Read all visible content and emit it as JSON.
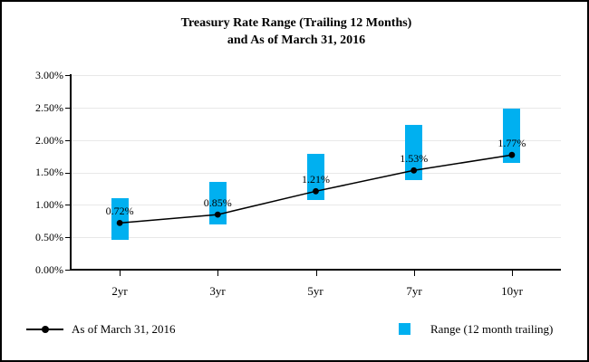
{
  "title": {
    "line1": "Treasury Rate Range (Trailing 12 Months)",
    "line2": "and As of March 31, 2016"
  },
  "legend": {
    "line_label": "As of March 31, 2016",
    "range_label": "Range (12 month trailing)"
  },
  "colors": {
    "range_bar": "#00b0f0",
    "line": "#000000",
    "gridline": "#e8e8e8"
  },
  "chart_data": {
    "type": "bar",
    "subtype": "floating-range-bars-with-line-overlay",
    "title": "Treasury Rate Range (Trailing 12 Months) and As of March 31, 2016",
    "categories": [
      "2yr",
      "3yr",
      "5yr",
      "7yr",
      "10yr"
    ],
    "series": [
      {
        "name": "As of March 31, 2016",
        "type": "line",
        "marker": "circle",
        "color": "#000000",
        "values": [
          0.72,
          0.85,
          1.21,
          1.53,
          1.77
        ],
        "point_labels": [
          "0.72%",
          "0.85%",
          "1.21%",
          "1.53%",
          "1.77%"
        ]
      },
      {
        "name": "Range (12 month trailing)",
        "type": "floating-bar",
        "color": "#00b0f0",
        "low": [
          0.46,
          0.7,
          1.08,
          1.38,
          1.65
        ],
        "high": [
          1.1,
          1.36,
          1.78,
          2.23,
          2.49
        ]
      }
    ],
    "xlabel": "",
    "ylabel": "",
    "ylim": [
      0,
      3
    ],
    "ytick_step": 0.5,
    "ytick_labels": [
      "0.00%",
      "0.50%",
      "1.00%",
      "1.50%",
      "2.00%",
      "2.50%",
      "3.00%"
    ],
    "grid": true,
    "legend_position": "bottom"
  }
}
